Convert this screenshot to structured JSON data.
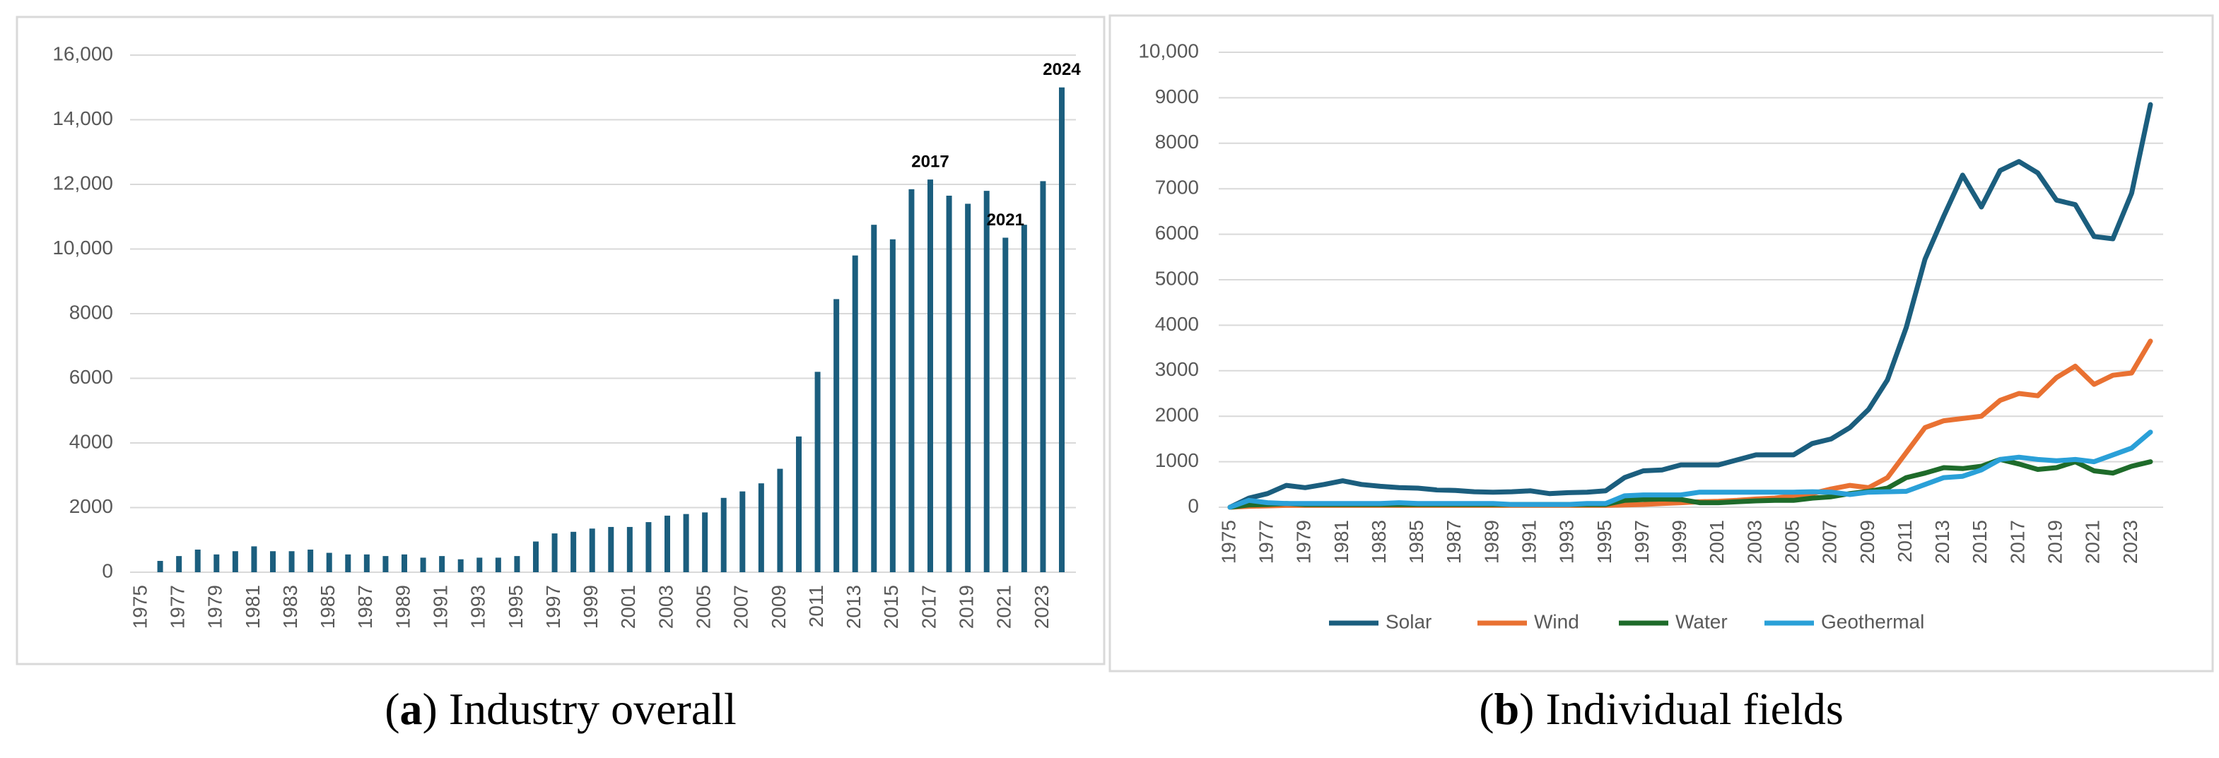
{
  "chart_data": [
    {
      "type": "bar",
      "caption": [
        "(",
        "a",
        ") Industry overall"
      ],
      "categories": [
        "1975",
        null,
        "1977",
        null,
        "1979",
        null,
        "1981",
        null,
        "1983",
        null,
        "1985",
        null,
        "1987",
        null,
        "1989",
        null,
        "1991",
        null,
        "1993",
        null,
        "1995",
        null,
        "1997",
        null,
        "1999",
        null,
        "2001",
        null,
        "2003",
        null,
        "2005",
        null,
        "2007",
        null,
        "2009",
        null,
        "2011",
        null,
        "2013",
        null,
        "2015",
        null,
        "2017",
        null,
        "2019",
        null,
        "2021",
        null,
        "2023",
        null
      ],
      "values": [
        0,
        350,
        500,
        700,
        550,
        650,
        800,
        650,
        650,
        700,
        600,
        550,
        550,
        500,
        550,
        450,
        500,
        400,
        450,
        450,
        500,
        950,
        1200,
        1250,
        1350,
        1400,
        1400,
        1550,
        1750,
        1800,
        1850,
        2300,
        2500,
        2750,
        3200,
        4200,
        6200,
        8450,
        9800,
        10750,
        10300,
        11850,
        12150,
        11650,
        11400,
        11800,
        10350,
        10750,
        12100,
        15000
      ],
      "color": "#1b5e7e",
      "annotations": [
        {
          "text": "2017",
          "index": 42
        },
        {
          "text": "2021",
          "index": 46
        },
        {
          "text": "2024",
          "index": 49
        }
      ],
      "ylim": [
        0,
        16000
      ],
      "yticks": [
        0,
        2000,
        4000,
        6000,
        8000,
        {
          "value": 10000,
          "label": "10,000"
        },
        {
          "value": 12000,
          "label": "12,000"
        },
        {
          "value": 14000,
          "label": "14,000"
        },
        {
          "value": 16000,
          "label": "16,000"
        }
      ],
      "grid": true
    },
    {
      "type": "line",
      "caption": [
        "(",
        "b",
        ") Individual fields"
      ],
      "categories": [
        "1975",
        null,
        "1977",
        null,
        "1979",
        null,
        "1981",
        null,
        "1983",
        null,
        "1985",
        null,
        "1987",
        null,
        "1989",
        null,
        "1991",
        null,
        "1993",
        null,
        "1995",
        null,
        "1997",
        null,
        "1999",
        null,
        "2001",
        null,
        "2003",
        null,
        "2005",
        null,
        "2007",
        null,
        "2009",
        null,
        "2011",
        null,
        "2013",
        null,
        "2015",
        null,
        "2017",
        null,
        "2019",
        null,
        "2021",
        null,
        "2023",
        null
      ],
      "series": [
        {
          "name": "Solar",
          "color": "#1b5e7e",
          "values": [
            0,
            200,
            300,
            480,
            430,
            500,
            580,
            500,
            460,
            430,
            420,
            380,
            370,
            340,
            330,
            340,
            360,
            300,
            320,
            330,
            360,
            650,
            800,
            820,
            930,
            930,
            930,
            1040,
            1150,
            1150,
            1150,
            1400,
            1500,
            1750,
            2150,
            2800,
            3950,
            5450,
            6400,
            7300,
            6600,
            7400,
            7600,
            7350,
            6750,
            6650,
            5950,
            5900,
            6900,
            8850
          ]
        },
        {
          "name": "Wind",
          "color": "#e97132",
          "values": [
            0,
            20,
            30,
            40,
            40,
            40,
            40,
            40,
            40,
            40,
            40,
            40,
            40,
            40,
            40,
            40,
            40,
            40,
            40,
            40,
            40,
            50,
            60,
            80,
            100,
            120,
            130,
            150,
            180,
            200,
            250,
            300,
            400,
            480,
            430,
            650,
            1200,
            1750,
            1900,
            1950,
            2000,
            2350,
            2500,
            2450,
            2850,
            3100,
            2700,
            2900,
            2950,
            3650
          ]
        },
        {
          "name": "Water",
          "color": "#1e6b2a",
          "values": [
            0,
            50,
            60,
            80,
            60,
            60,
            60,
            60,
            60,
            60,
            60,
            60,
            60,
            60,
            60,
            60,
            60,
            60,
            60,
            60,
            60,
            150,
            170,
            180,
            170,
            100,
            100,
            120,
            140,
            150,
            150,
            200,
            230,
            300,
            350,
            420,
            650,
            750,
            870,
            850,
            900,
            1050,
            950,
            830,
            870,
            1000,
            800,
            750,
            900,
            1000
          ]
        },
        {
          "name": "Geothermal",
          "color": "#2aa0d8",
          "values": [
            0,
            150,
            100,
            80,
            80,
            80,
            80,
            80,
            80,
            100,
            80,
            80,
            80,
            80,
            80,
            60,
            60,
            60,
            60,
            80,
            80,
            250,
            270,
            270,
            270,
            330,
            330,
            330,
            330,
            330,
            330,
            340,
            330,
            280,
            330,
            340,
            350,
            500,
            650,
            680,
            820,
            1050,
            1100,
            1050,
            1020,
            1050,
            1000,
            1150,
            1300,
            1650
          ]
        }
      ],
      "ylim": [
        0,
        10000
      ],
      "yticks": [
        0,
        1000,
        2000,
        3000,
        4000,
        5000,
        6000,
        7000,
        8000,
        9000,
        {
          "value": 10000,
          "label": "10,000"
        }
      ],
      "grid": true,
      "legend": "bottom"
    }
  ]
}
